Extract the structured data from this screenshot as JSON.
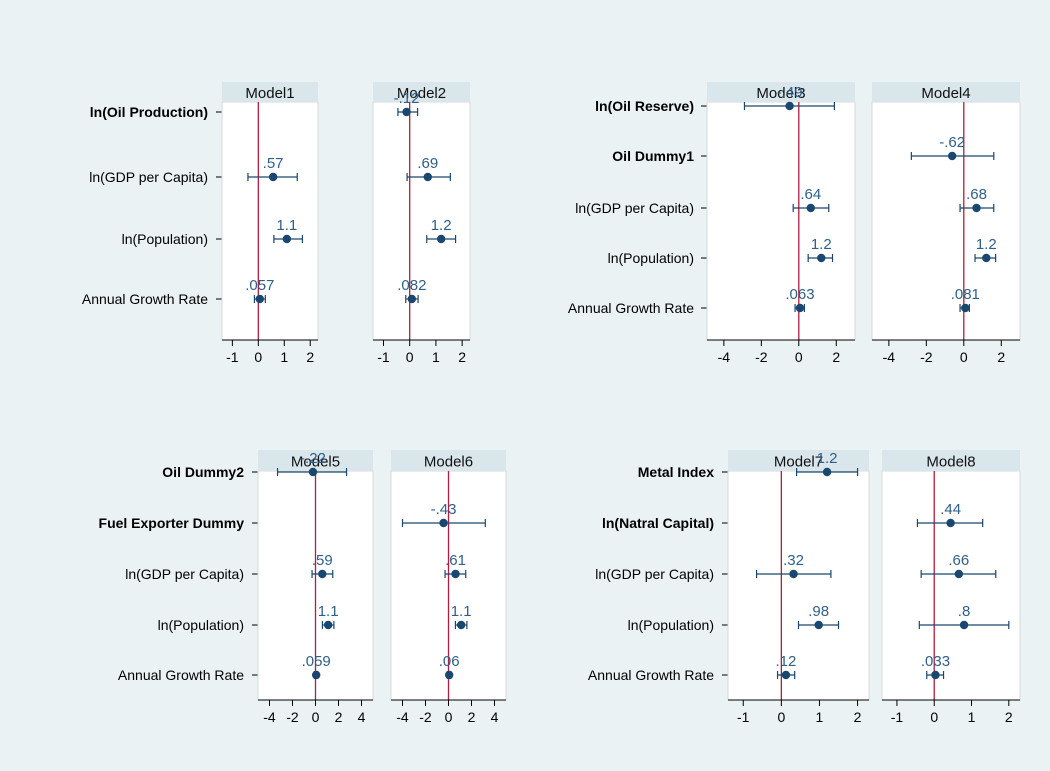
{
  "colors": {
    "background": "#eaf2f3",
    "panel": "#ffffff",
    "header": "#d9e6ec",
    "reference_line": "#b11e3c",
    "marker": "#1a476f",
    "value_label": "#2f5f88",
    "axis": "#000000"
  },
  "chart_data": [
    {
      "type": "scatter",
      "group": "A",
      "variables": [
        {
          "label": "ln(Oil Production)",
          "bold": true
        },
        {
          "label": "ln(GDP per Capita)",
          "bold": false
        },
        {
          "label": "ln(Population)",
          "bold": false
        },
        {
          "label": "Annual Growth Rate",
          "bold": false
        }
      ],
      "xticks": [
        -1,
        0,
        1,
        2
      ],
      "xlim": [
        -1.4,
        2.3
      ],
      "reference_line": 0,
      "panels": [
        {
          "title": "Model1",
          "estimates": [
            null,
            {
              "coef": 0.57,
              "lo": -0.4,
              "hi": 1.5,
              "label": ".57"
            },
            {
              "coef": 1.1,
              "lo": 0.6,
              "hi": 1.7,
              "label": "1.1"
            },
            {
              "coef": 0.057,
              "lo": -0.15,
              "hi": 0.27,
              "label": ".057"
            }
          ]
        },
        {
          "title": "Model2",
          "estimates": [
            {
              "coef": -0.12,
              "lo": -0.45,
              "hi": 0.3,
              "label": "-.12"
            },
            {
              "coef": 0.69,
              "lo": -0.1,
              "hi": 1.55,
              "label": ".69"
            },
            {
              "coef": 1.2,
              "lo": 0.65,
              "hi": 1.75,
              "label": "1.2"
            },
            {
              "coef": 0.082,
              "lo": -0.15,
              "hi": 0.32,
              "label": ".082"
            }
          ]
        }
      ]
    },
    {
      "type": "scatter",
      "group": "B",
      "variables": [
        {
          "label": "ln(Oil Reserve)",
          "bold": true
        },
        {
          "label": "Oil Dummy1",
          "bold": true
        },
        {
          "label": "ln(GDP per Capita)",
          "bold": false
        },
        {
          "label": "ln(Population)",
          "bold": false
        },
        {
          "label": "Annual Growth Rate",
          "bold": false
        }
      ],
      "xticks": [
        -4,
        -2,
        0,
        2
      ],
      "xlim": [
        -4.9,
        3.0
      ],
      "reference_line": 0,
      "panels": [
        {
          "title": "Model3",
          "estimates": [
            {
              "coef": -0.49,
              "lo": -2.9,
              "hi": 1.9,
              "label": "-.49"
            },
            null,
            {
              "coef": 0.64,
              "lo": -0.3,
              "hi": 1.6,
              "label": ".64"
            },
            {
              "coef": 1.2,
              "lo": 0.5,
              "hi": 1.8,
              "label": "1.2"
            },
            {
              "coef": 0.063,
              "lo": -0.2,
              "hi": 0.3,
              "label": ".063"
            }
          ]
        },
        {
          "title": "Model4",
          "estimates": [
            null,
            {
              "coef": -0.62,
              "lo": -2.8,
              "hi": 1.6,
              "label": "-.62"
            },
            {
              "coef": 0.68,
              "lo": -0.2,
              "hi": 1.6,
              "label": ".68"
            },
            {
              "coef": 1.2,
              "lo": 0.6,
              "hi": 1.7,
              "label": "1.2"
            },
            {
              "coef": 0.081,
              "lo": -0.2,
              "hi": 0.3,
              "label": ".081"
            }
          ]
        }
      ]
    },
    {
      "type": "scatter",
      "group": "C",
      "variables": [
        {
          "label": "Oil Dummy2",
          "bold": true
        },
        {
          "label": "Fuel Exporter Dummy",
          "bold": true
        },
        {
          "label": "ln(GDP per Capita)",
          "bold": false
        },
        {
          "label": "ln(Population)",
          "bold": false
        },
        {
          "label": "Annual Growth Rate",
          "bold": false
        }
      ],
      "xticks": [
        -4,
        -2,
        0,
        2,
        4
      ],
      "xlim": [
        -5.0,
        5.0
      ],
      "reference_line": 0,
      "panels": [
        {
          "title": "Model5",
          "estimates": [
            {
              "coef": -0.22,
              "lo": -3.3,
              "hi": 2.7,
              "label": "-.22"
            },
            null,
            {
              "coef": 0.59,
              "lo": -0.3,
              "hi": 1.5,
              "label": ".59"
            },
            {
              "coef": 1.1,
              "lo": 0.6,
              "hi": 1.6,
              "label": "1.1"
            },
            {
              "coef": 0.059,
              "lo": -0.1,
              "hi": 0.2,
              "label": ".059"
            }
          ]
        },
        {
          "title": "Model6",
          "estimates": [
            null,
            {
              "coef": -0.43,
              "lo": -4.0,
              "hi": 3.2,
              "label": "-.43"
            },
            {
              "coef": 0.61,
              "lo": -0.3,
              "hi": 1.5,
              "label": ".61"
            },
            {
              "coef": 1.1,
              "lo": 0.6,
              "hi": 1.6,
              "label": "1.1"
            },
            {
              "coef": 0.06,
              "lo": -0.1,
              "hi": 0.2,
              "label": ".06"
            }
          ]
        }
      ]
    },
    {
      "type": "scatter",
      "group": "D",
      "variables": [
        {
          "label": "Metal Index",
          "bold": true
        },
        {
          "label": "ln(Natral Capital)",
          "bold": true
        },
        {
          "label": "ln(GDP per Capita)",
          "bold": false
        },
        {
          "label": "ln(Population)",
          "bold": false
        },
        {
          "label": "Annual Growth Rate",
          "bold": false
        }
      ],
      "xticks": [
        -1,
        0,
        1,
        2
      ],
      "xlim": [
        -1.4,
        2.3
      ],
      "reference_line": 0,
      "panels": [
        {
          "title": "Model7",
          "estimates": [
            {
              "coef": 1.2,
              "lo": 0.4,
              "hi": 2.0,
              "label": "1.2"
            },
            null,
            {
              "coef": 0.32,
              "lo": -0.65,
              "hi": 1.3,
              "label": ".32"
            },
            {
              "coef": 0.98,
              "lo": 0.45,
              "hi": 1.5,
              "label": ".98"
            },
            {
              "coef": 0.12,
              "lo": -0.1,
              "hi": 0.35,
              "label": ".12"
            }
          ]
        },
        {
          "title": "Model8",
          "estimates": [
            null,
            {
              "coef": 0.44,
              "lo": -0.45,
              "hi": 1.3,
              "label": ".44"
            },
            {
              "coef": 0.66,
              "lo": -0.35,
              "hi": 1.65,
              "label": ".66"
            },
            {
              "coef": 0.8,
              "lo": -0.4,
              "hi": 2.0,
              "label": ".8"
            },
            {
              "coef": 0.033,
              "lo": -0.2,
              "hi": 0.25,
              "label": ".033"
            }
          ]
        }
      ]
    }
  ]
}
